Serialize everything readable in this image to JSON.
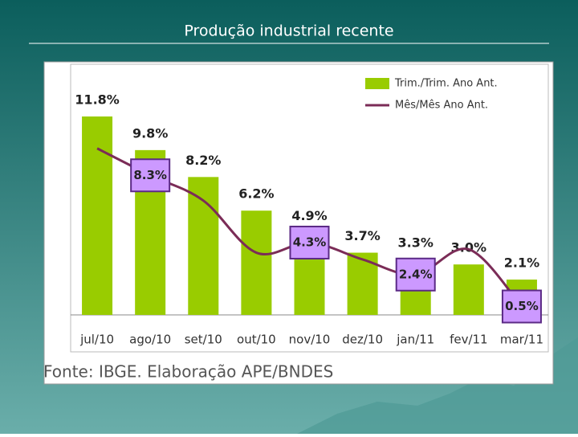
{
  "slide": {
    "title": "Produção industrial recente"
  },
  "chart_data": {
    "type": "bar",
    "source": "Fonte: IBGE. Elaboração APE/BNDES",
    "categories": [
      "jul/10",
      "ago/10",
      "set/10",
      "out/10",
      "nov/10",
      "dez/10",
      "jan/11",
      "fev/11",
      "mar/11"
    ],
    "series": [
      {
        "name": "Trim./Trim. Ano Ant.",
        "type": "bar",
        "color": "#99cc00",
        "values": [
          11.8,
          9.8,
          8.2,
          6.2,
          4.9,
          3.7,
          3.3,
          3.0,
          2.1
        ],
        "value_labels": [
          "11.8%",
          "9.8%",
          "8.2%",
          "6.2%",
          "4.9%",
          "3.7%",
          "3.3%",
          "3.0%",
          "2.1%"
        ]
      },
      {
        "name": "Mês/Mês Ano Ant.",
        "type": "line",
        "color": "#7b2c57",
        "values": [
          9.9,
          8.3,
          6.8,
          3.7,
          4.3,
          3.3,
          2.4,
          3.9,
          0.5
        ],
        "value_labels": [
          null,
          "8.3%",
          null,
          null,
          "4.3%",
          null,
          "2.4%",
          null,
          "0.5%"
        ]
      }
    ]
  }
}
